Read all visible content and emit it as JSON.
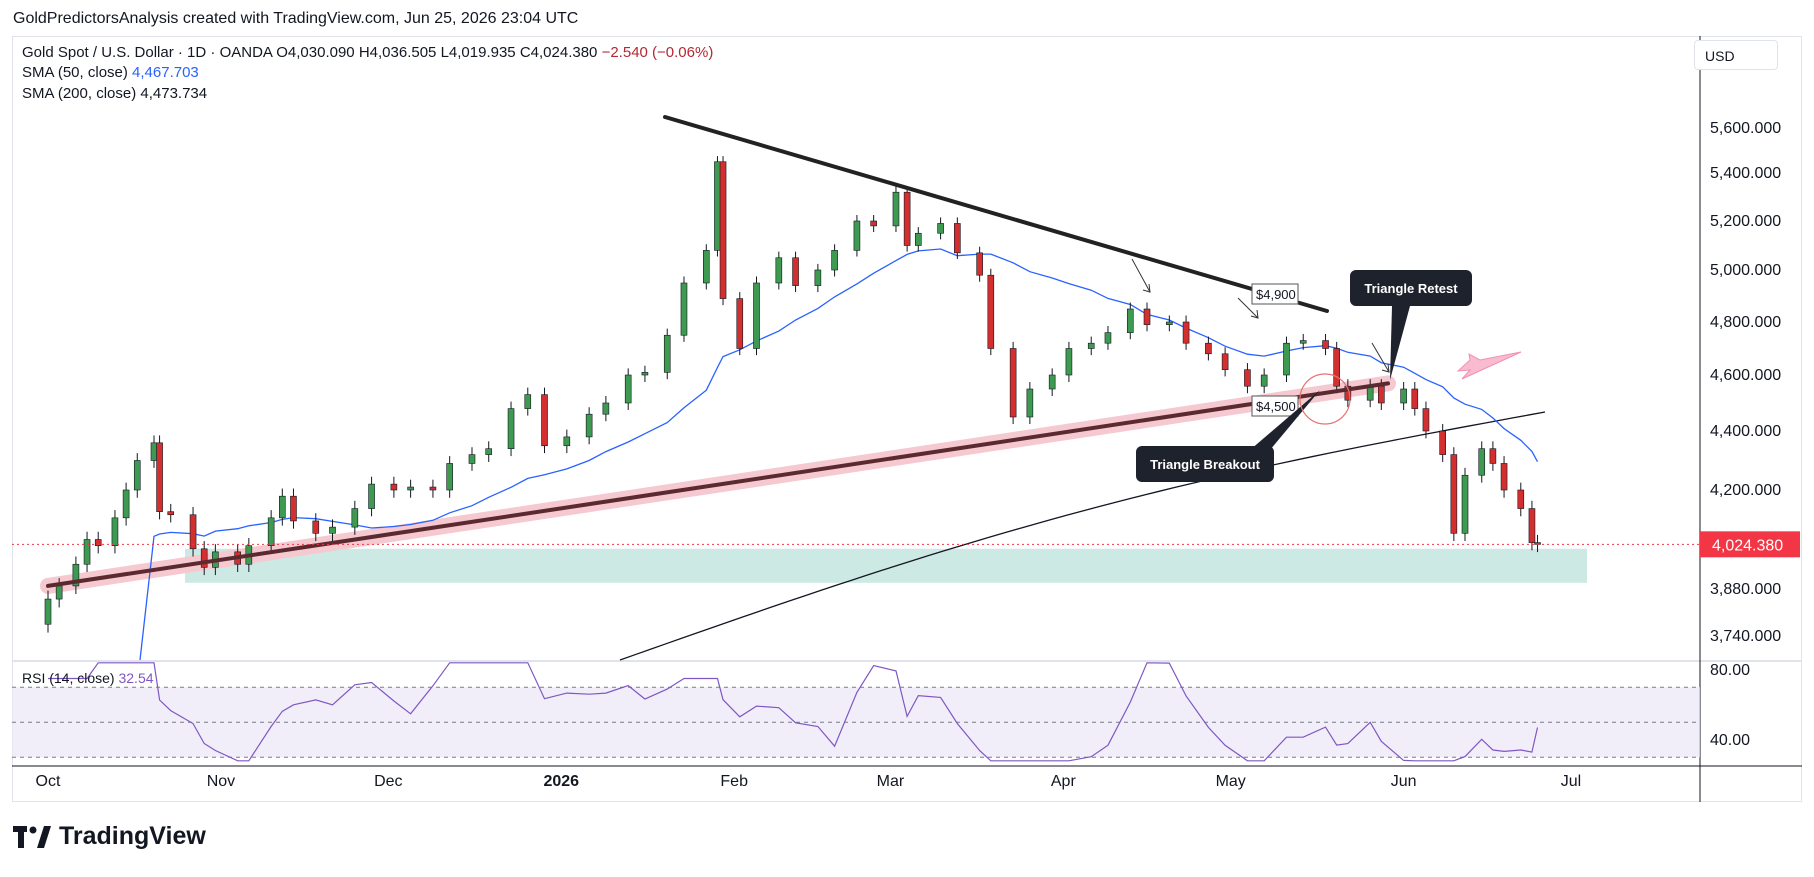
{
  "header": {
    "publisher_line": "GoldPredictorsAnalysis created with TradingView.com, Jun 25, 2026 23:04 UTC"
  },
  "legend": {
    "symbol": "Gold Spot / U.S. Dollar · 1D · OANDA",
    "open": "O4,030.090",
    "high": "H4,036.505",
    "low": "L4,019.935",
    "close": "C4,024.380",
    "change": "−2.540 (−0.06%)",
    "sma50_label": "SMA (50, close)",
    "sma50_value": "4,467.703",
    "sma200_label": "SMA (200, close)",
    "sma200_value": "4,473.734",
    "rsi_label": "RSI (14, close)",
    "rsi_value": "32.54"
  },
  "currency_button": "USD",
  "branding": "TradingView",
  "colors": {
    "up": "#26a69a",
    "up_fill": "#3d9a50",
    "down": "#d32f2f",
    "sma50": "#2962ff",
    "sma200": "#131722",
    "support_zone": "#cde9e4",
    "rsi": "#7e57c2",
    "price_tag": "#f23645"
  },
  "chart_data": {
    "type": "candlestick",
    "title": "Gold Spot / U.S. Dollar · 1D · OANDA",
    "y_ticks": [
      "5,600.000",
      "5,400.000",
      "5,200.000",
      "5,000.000",
      "4,800.000",
      "4,600.000",
      "4,400.000",
      "4,200.000",
      "3,880.000",
      "3,740.000"
    ],
    "y_tick_values": [
      5600,
      5400,
      5200,
      5000,
      4800,
      4600,
      4400,
      4200,
      3880,
      3740
    ],
    "x_ticks": [
      "Oct",
      "Nov",
      "Dec",
      "2026",
      "Feb",
      "Mar",
      "Apr",
      "May",
      "Jun",
      "Jul"
    ],
    "x_tick_dates": [
      "2025-10-01",
      "2025-11-01",
      "2025-12-01",
      "2026-01-01",
      "2026-02-01",
      "2026-03-01",
      "2026-04-01",
      "2026-05-01",
      "2026-06-01",
      "2026-07-01"
    ],
    "last_price_label": "4,024.380",
    "last_price": 4024.38,
    "rsi_ticks": [
      "80.00",
      "40.00"
    ],
    "rsi_levels": [
      70,
      50,
      30
    ],
    "close_series": [
      [
        "2025-09-29",
        3775
      ],
      [
        "2025-10-01",
        3850
      ],
      [
        "2025-10-03",
        3890
      ],
      [
        "2025-10-06",
        3960
      ],
      [
        "2025-10-08",
        4040
      ],
      [
        "2025-10-10",
        4020
      ],
      [
        "2025-10-13",
        4110
      ],
      [
        "2025-10-15",
        4200
      ],
      [
        "2025-10-17",
        4300
      ],
      [
        "2025-10-20",
        4360
      ],
      [
        "2025-10-21",
        4130
      ],
      [
        "2025-10-23",
        4120
      ],
      [
        "2025-10-27",
        4010
      ],
      [
        "2025-10-29",
        3950
      ],
      [
        "2025-10-31",
        4000
      ],
      [
        "2025-11-04",
        3960
      ],
      [
        "2025-11-06",
        4020
      ],
      [
        "2025-11-10",
        4110
      ],
      [
        "2025-11-12",
        4180
      ],
      [
        "2025-11-14",
        4100
      ],
      [
        "2025-11-18",
        4060
      ],
      [
        "2025-11-21",
        4080
      ],
      [
        "2025-11-25",
        4140
      ],
      [
        "2025-11-28",
        4220
      ],
      [
        "2025-12-02",
        4200
      ],
      [
        "2025-12-05",
        4210
      ],
      [
        "2025-12-09",
        4200
      ],
      [
        "2025-12-12",
        4290
      ],
      [
        "2025-12-16",
        4320
      ],
      [
        "2025-12-19",
        4340
      ],
      [
        "2025-12-23",
        4480
      ],
      [
        "2025-12-26",
        4530
      ],
      [
        "2025-12-29",
        4350
      ],
      [
        "2026-01-02",
        4380
      ],
      [
        "2026-01-06",
        4460
      ],
      [
        "2026-01-09",
        4500
      ],
      [
        "2026-01-13",
        4600
      ],
      [
        "2026-01-16",
        4610
      ],
      [
        "2026-01-20",
        4750
      ],
      [
        "2026-01-23",
        4950
      ],
      [
        "2026-01-27",
        5080
      ],
      [
        "2026-01-29",
        5450
      ],
      [
        "2026-01-30",
        4890
      ],
      [
        "2026-02-02",
        4700
      ],
      [
        "2026-02-05",
        4950
      ],
      [
        "2026-02-09",
        5050
      ],
      [
        "2026-02-12",
        4940
      ],
      [
        "2026-02-16",
        5000
      ],
      [
        "2026-02-19",
        5080
      ],
      [
        "2026-02-23",
        5200
      ],
      [
        "2026-02-26",
        5180
      ],
      [
        "2026-03-02",
        5320
      ],
      [
        "2026-03-04",
        5100
      ],
      [
        "2026-03-06",
        5150
      ],
      [
        "2026-03-10",
        5190
      ],
      [
        "2026-03-13",
        5070
      ],
      [
        "2026-03-17",
        4980
      ],
      [
        "2026-03-19",
        4700
      ],
      [
        "2026-03-23",
        4450
      ],
      [
        "2026-03-26",
        4550
      ],
      [
        "2026-03-30",
        4600
      ],
      [
        "2026-04-02",
        4700
      ],
      [
        "2026-04-06",
        4720
      ],
      [
        "2026-04-09",
        4760
      ],
      [
        "2026-04-13",
        4850
      ],
      [
        "2026-04-16",
        4790
      ],
      [
        "2026-04-20",
        4800
      ],
      [
        "2026-04-23",
        4720
      ],
      [
        "2026-04-27",
        4680
      ],
      [
        "2026-04-30",
        4620
      ],
      [
        "2026-05-04",
        4560
      ],
      [
        "2026-05-07",
        4600
      ],
      [
        "2026-05-11",
        4720
      ],
      [
        "2026-05-14",
        4730
      ],
      [
        "2026-05-18",
        4700
      ],
      [
        "2026-05-20",
        4560
      ],
      [
        "2026-05-22",
        4510
      ],
      [
        "2026-05-26",
        4560
      ],
      [
        "2026-05-28",
        4500
      ],
      [
        "2026-06-01",
        4550
      ],
      [
        "2026-06-03",
        4480
      ],
      [
        "2026-06-05",
        4400
      ],
      [
        "2026-06-08",
        4320
      ],
      [
        "2026-06-10",
        4060
      ],
      [
        "2026-06-12",
        4250
      ],
      [
        "2026-06-15",
        4340
      ],
      [
        "2026-06-17",
        4290
      ],
      [
        "2026-06-19",
        4200
      ],
      [
        "2026-06-22",
        4140
      ],
      [
        "2026-06-24",
        4030
      ],
      [
        "2026-06-25",
        4024.38
      ]
    ]
  },
  "annotations": {
    "label_4900": "$4,900",
    "label_4500": "$4,500",
    "triangle_retest": "Triangle Retest",
    "triangle_breakout": "Triangle Breakout"
  }
}
